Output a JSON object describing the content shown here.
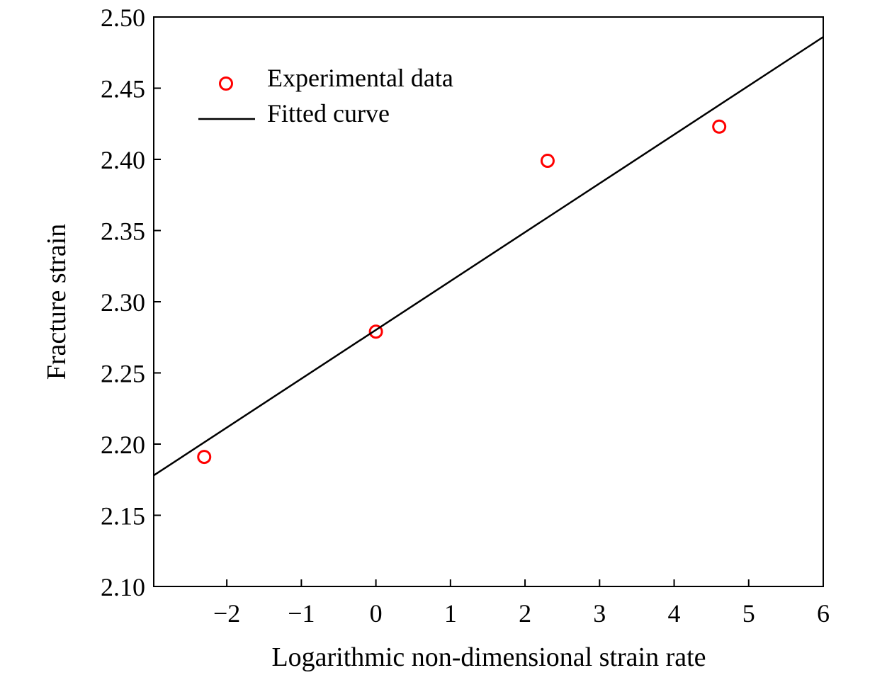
{
  "chart_data": {
    "type": "scatter",
    "title": "",
    "xlabel": "Logarithmic non-dimensional strain rate",
    "ylabel": "Fracture strain",
    "xlim": [
      -2.98,
      6
    ],
    "ylim": [
      2.1,
      2.5
    ],
    "x_ticks": [
      -2,
      -1,
      0,
      1,
      2,
      3,
      4,
      5,
      6
    ],
    "x_tick_labels": [
      "−2",
      "−1",
      "0",
      "1",
      "2",
      "3",
      "4",
      "5",
      "6"
    ],
    "y_ticks": [
      2.1,
      2.15,
      2.2,
      2.25,
      2.3,
      2.35,
      2.4,
      2.45,
      2.5
    ],
    "y_tick_labels": [
      "2.10",
      "2.15",
      "2.20",
      "2.25",
      "2.30",
      "2.35",
      "2.40",
      "2.45",
      "2.50"
    ],
    "grid": false,
    "legend_position": "top-left",
    "series": [
      {
        "name": "Experimental data",
        "kind": "scatter",
        "marker": "open-circle",
        "color": "#ff0000",
        "x": [
          -2.303,
          0,
          2.303,
          4.605
        ],
        "y": [
          2.191,
          2.279,
          2.399,
          2.423
        ]
      },
      {
        "name": "Fitted curve",
        "kind": "line",
        "color": "#000000",
        "x": [
          -2.98,
          6
        ],
        "y": [
          2.178,
          2.486
        ]
      }
    ]
  }
}
